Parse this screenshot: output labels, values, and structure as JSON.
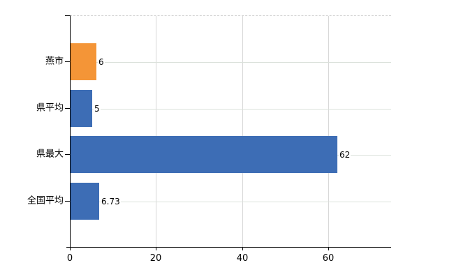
{
  "chart_data": {
    "type": "bar",
    "orientation": "horizontal",
    "title": "",
    "categories": [
      "燕市",
      "県平均",
      "県最大",
      "全国平均"
    ],
    "values": [
      6,
      5,
      62,
      6.73
    ],
    "value_labels": [
      "6",
      "5",
      "62",
      "6.73"
    ],
    "bar_colors": [
      "#f49537",
      "#3d6db5",
      "#3d6db5",
      "#3d6db5"
    ],
    "x_tick_values": [
      0,
      20,
      40,
      60
    ],
    "x_tick_labels": [
      "0",
      "20",
      "40",
      "60"
    ],
    "xlim": [
      0,
      74.6
    ],
    "grid": "on",
    "legend_position": "none"
  },
  "style": {
    "accent_orange": "#f49537",
    "accent_blue": "#3d6db5",
    "h_grid_color": "#dbe1db",
    "v_grid_color": "#d6d6d6",
    "frame_dash_color": "#cfcfcf",
    "axis_color": "#000000",
    "text_color": "#000000",
    "background": "#ffffff"
  }
}
